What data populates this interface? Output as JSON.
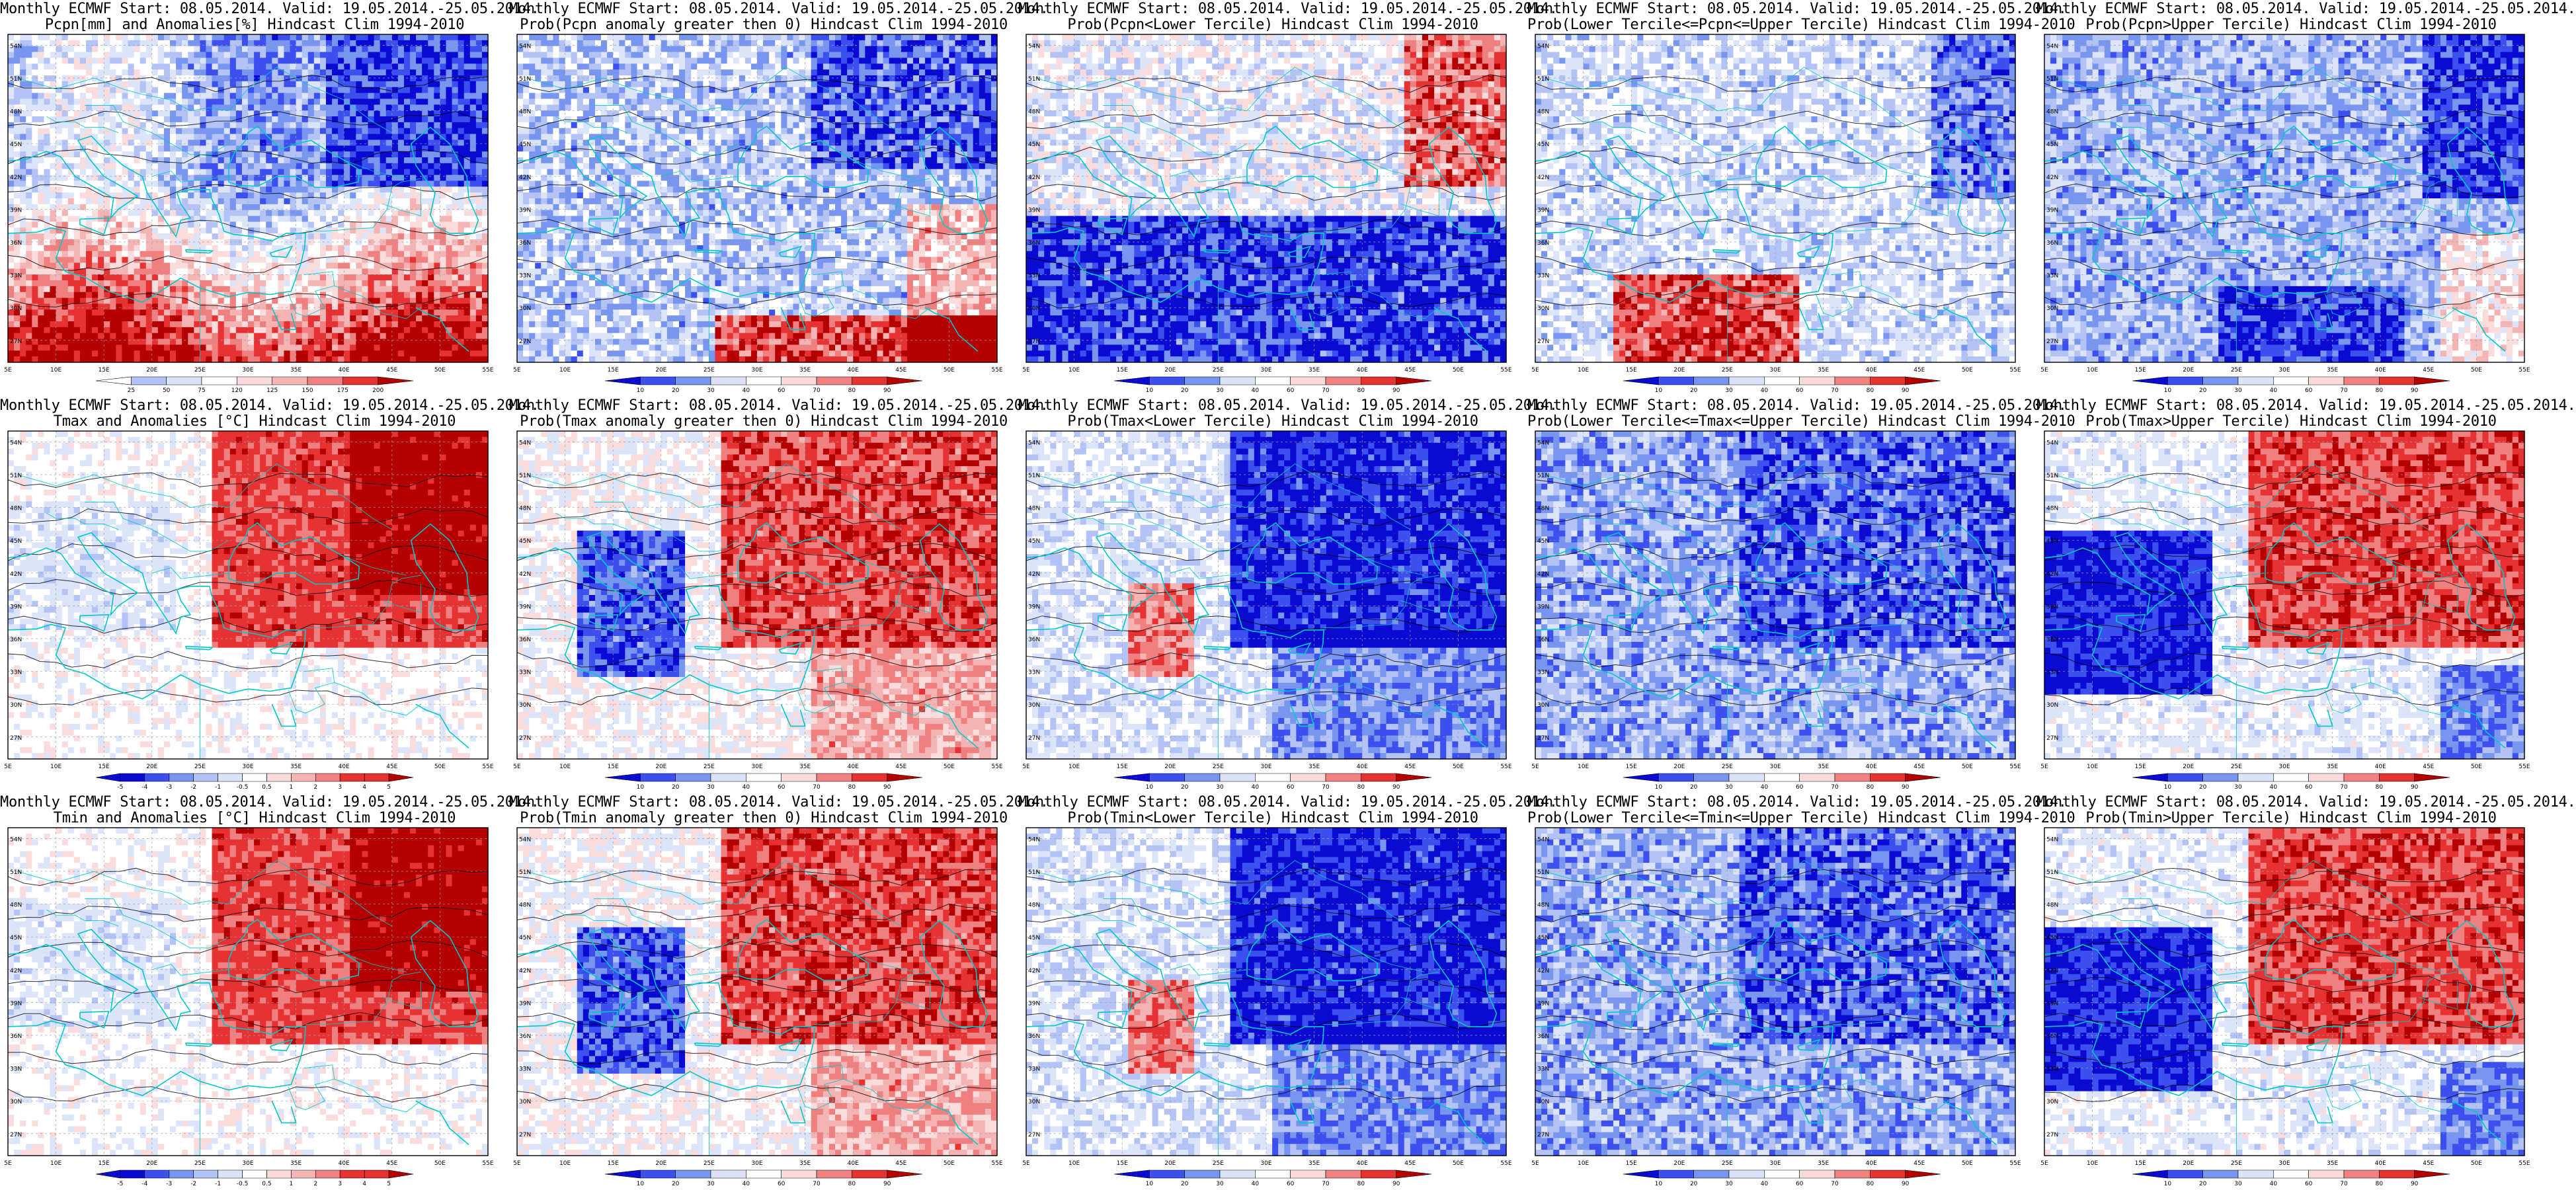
{
  "figure": {
    "rows": [
      {
        "variable": "Pcpn",
        "panels": [
          {
            "line1": "Monthly ECMWF Start: 08.05.2014. Valid: 19.05.2014.-25.05.2014.",
            "line2": "Pcpn[mm] and Anomalies[%] Hindcast Clim 1994-2010",
            "colorbar": [
              "25",
              "50",
              "75",
              "120",
              "125",
              "150",
              "175",
              "200"
            ],
            "scheme": "pcpn-anom"
          },
          {
            "line1": "Monthly ECMWF Start: 08.05.2014. Valid: 19.05.2014.-25.05.2014.",
            "line2": "Prob(Pcpn anomaly greater then 0) Hindcast Clim 1994-2010",
            "colorbar": [
              "10",
              "20",
              "30",
              "40",
              "60",
              "70",
              "80",
              "90"
            ],
            "scheme": "prob-pos"
          },
          {
            "line1": "Monthly ECMWF Start: 08.05.2014. Valid: 19.05.2014.-25.05.2014.",
            "line2": "Prob(Pcpn<Lower Tercile) Hindcast Clim 1994-2010",
            "colorbar": [
              "10",
              "20",
              "30",
              "40",
              "60",
              "70",
              "80",
              "90"
            ],
            "scheme": "prob-lower"
          },
          {
            "line1": "Monthly ECMWF Start: 08.05.2014. Valid: 19.05.2014.-25.05.2014.",
            "line2": "Prob(Lower Tercile<=Pcpn<=Upper Tercile) Hindcast Clim 1994-2010",
            "colorbar": [
              "10",
              "20",
              "30",
              "40",
              "60",
              "70",
              "80",
              "90"
            ],
            "scheme": "prob-mid"
          },
          {
            "line1": "Monthly ECMWF Start: 08.05.2014. Valid: 19.05.2014.-25.05.2014.",
            "line2": "Prob(Pcpn>Upper Tercile) Hindcast Clim 1994-2010",
            "colorbar": [
              "10",
              "20",
              "30",
              "40",
              "60",
              "70",
              "80",
              "90"
            ],
            "scheme": "prob-upper"
          }
        ]
      },
      {
        "variable": "Tmax",
        "panels": [
          {
            "line1": "Monthly ECMWF Start: 08.05.2014. Valid: 19.05.2014.-25.05.2014.",
            "line2": "Tmax and Anomalies [°C] Hindcast Clim 1994-2010",
            "colorbar": [
              "-5",
              "-4",
              "-3",
              "-2",
              "-1",
              "-0.5",
              "0.5",
              "1",
              "2",
              "3",
              "4",
              "5"
            ],
            "scheme": "temp-anom"
          },
          {
            "line1": "Monthly ECMWF Start: 08.05.2014. Valid: 19.05.2014.-25.05.2014.",
            "line2": "Prob(Tmax anomaly greater then 0) Hindcast Clim 1994-2010",
            "colorbar": [
              "10",
              "20",
              "30",
              "40",
              "60",
              "70",
              "80",
              "90"
            ],
            "scheme": "prob-pos"
          },
          {
            "line1": "Monthly ECMWF Start: 08.05.2014. Valid: 19.05.2014.-25.05.2014.",
            "line2": "Prob(Tmax<Lower Tercile) Hindcast Clim 1994-2010",
            "colorbar": [
              "10",
              "20",
              "30",
              "40",
              "60",
              "70",
              "80",
              "90"
            ],
            "scheme": "prob-lower"
          },
          {
            "line1": "Monthly ECMWF Start: 08.05.2014. Valid: 19.05.2014.-25.05.2014.",
            "line2": "Prob(Lower Tercile<=Tmax<=Upper Tercile) Hindcast Clim 1994-2010",
            "colorbar": [
              "10",
              "20",
              "30",
              "40",
              "60",
              "70",
              "80",
              "90"
            ],
            "scheme": "prob-mid"
          },
          {
            "line1": "Monthly ECMWF Start: 08.05.2014. Valid: 19.05.2014.-25.05.2014.",
            "line2": "Prob(Tmax>Upper Tercile) Hindcast Clim 1994-2010",
            "colorbar": [
              "10",
              "20",
              "30",
              "40",
              "60",
              "70",
              "80",
              "90"
            ],
            "scheme": "prob-upper"
          }
        ]
      },
      {
        "variable": "Tmin",
        "panels": [
          {
            "line1": "Monthly ECMWF Start: 08.05.2014. Valid: 19.05.2014.-25.05.2014.",
            "line2": "Tmin and Anomalies [°C] Hindcast Clim 1994-2010",
            "colorbar": [
              "-5",
              "-4",
              "-3",
              "-2",
              "-1",
              "-0.5",
              "0.5",
              "1",
              "2",
              "3",
              "4",
              "5"
            ],
            "scheme": "temp-anom"
          },
          {
            "line1": "Monthly ECMWF Start: 08.05.2014. Valid: 19.05.2014.-25.05.2014.",
            "line2": "Prob(Tmin anomaly greater then 0) Hindcast Clim 1994-2010",
            "colorbar": [
              "10",
              "20",
              "30",
              "40",
              "60",
              "70",
              "80",
              "90"
            ],
            "scheme": "prob-pos"
          },
          {
            "line1": "Monthly ECMWF Start: 08.05.2014. Valid: 19.05.2014.-25.05.2014.",
            "line2": "Prob(Tmin<Lower Tercile) Hindcast Clim 1994-2010",
            "colorbar": [
              "10",
              "20",
              "30",
              "40",
              "60",
              "70",
              "80",
              "90"
            ],
            "scheme": "prob-lower"
          },
          {
            "line1": "Monthly ECMWF Start: 08.05.2014. Valid: 19.05.2014.-25.05.2014.",
            "line2": "Prob(Lower Tercile<=Tmin<=Upper Tercile) Hindcast Clim 1994-2010",
            "colorbar": [
              "10",
              "20",
              "30",
              "40",
              "60",
              "70",
              "80",
              "90"
            ],
            "scheme": "prob-mid"
          },
          {
            "line1": "Monthly ECMWF Start: 08.05.2014. Valid: 19.05.2014.-25.05.2014.",
            "line2": "Prob(Tmin>Upper Tercile) Hindcast Clim 1994-2010",
            "colorbar": [
              "10",
              "20",
              "30",
              "40",
              "60",
              "70",
              "80",
              "90"
            ],
            "scheme": "prob-upper"
          }
        ]
      }
    ],
    "lat_labels": [
      "54N",
      "51N",
      "48N",
      "45N",
      "42N",
      "39N",
      "36N",
      "33N",
      "30N",
      "27N"
    ],
    "lon_labels": [
      "5E",
      "10E",
      "15E",
      "20E",
      "25E",
      "30E",
      "35E",
      "40E",
      "45E",
      "50E",
      "55E"
    ],
    "colors": {
      "deep_blue": "#0a0ad2",
      "blue": "#3c50f0",
      "mid_blue": "#7896f0",
      "light_blue": "#b4c3f5",
      "pale_blue": "#dce4fa",
      "white": "#ffffff",
      "pale_red": "#fadcdc",
      "light_red": "#f5b4b4",
      "mid_red": "#f08080",
      "red": "#e63232",
      "deep_red": "#b40000",
      "coastline": "#00c8c8",
      "contour": "#000000"
    }
  }
}
